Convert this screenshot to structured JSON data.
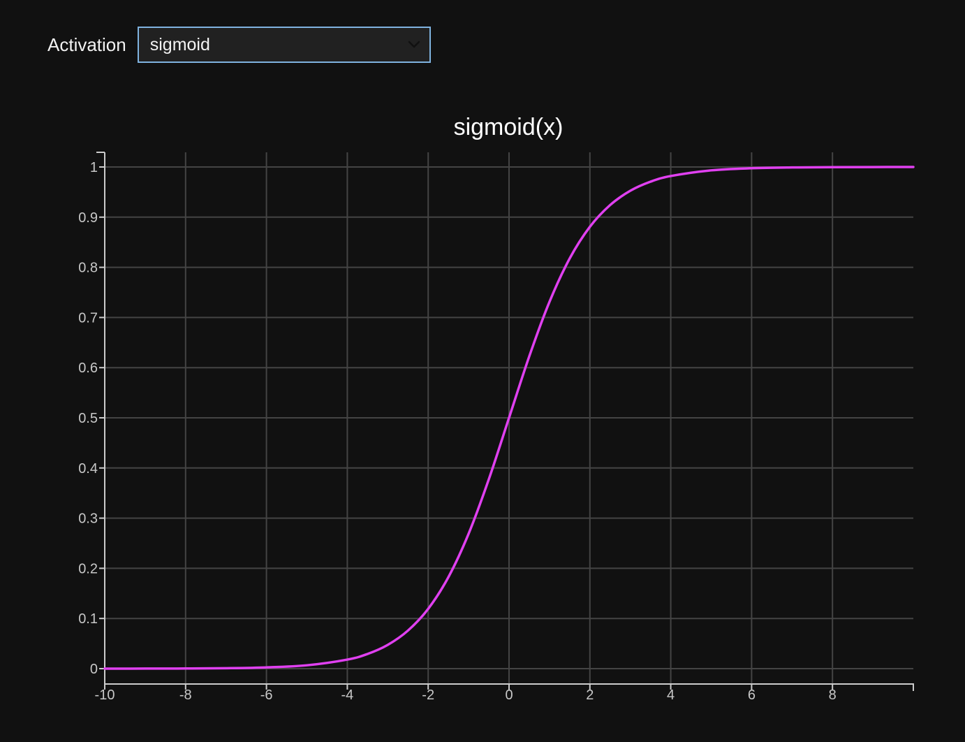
{
  "controls": {
    "activation_label": "Activation",
    "activation_value": "sigmoid"
  },
  "colors": {
    "background": "#111111",
    "curve": "#e040f0",
    "grid": "#444444",
    "axis": "#cccccc",
    "select_border": "#7fb3e0"
  },
  "chart_data": {
    "type": "line",
    "title": "sigmoid(x)",
    "xlabel": "",
    "ylabel": "",
    "xlim": [
      -10,
      10
    ],
    "ylim": [
      0,
      1
    ],
    "x_ticks": [
      -10,
      -8,
      -6,
      -4,
      -2,
      0,
      2,
      4,
      6,
      8
    ],
    "x_tick_labels": [
      "-10",
      "-8",
      "-6",
      "-4",
      "-2",
      "0",
      "2",
      "4",
      "6",
      "8"
    ],
    "y_ticks": [
      0,
      0.1,
      0.2,
      0.3,
      0.4,
      0.5,
      0.6,
      0.7,
      0.8,
      0.9,
      1
    ],
    "y_tick_labels": [
      "0",
      "0.1",
      "0.2",
      "0.3",
      "0.4",
      "0.5",
      "0.6",
      "0.7",
      "0.8",
      "0.9",
      "1"
    ],
    "grid": true,
    "series": [
      {
        "x": [
          -10,
          -9,
          -8,
          -7,
          -6,
          -5,
          -4,
          -3.5,
          -3,
          -2.5,
          -2,
          -1.5,
          -1,
          -0.5,
          0,
          0.5,
          1,
          1.5,
          2,
          2.5,
          3,
          3.5,
          4,
          5,
          6,
          7,
          8,
          9,
          10
        ],
        "y": [
          0.0,
          0.0001,
          0.0003,
          0.0009,
          0.0025,
          0.0067,
          0.018,
          0.0293,
          0.0474,
          0.0759,
          0.1192,
          0.1824,
          0.2689,
          0.3775,
          0.5,
          0.6225,
          0.7311,
          0.8176,
          0.8808,
          0.9241,
          0.9526,
          0.9707,
          0.982,
          0.9933,
          0.9975,
          0.9991,
          0.9997,
          0.9999,
          1.0
        ]
      }
    ]
  }
}
